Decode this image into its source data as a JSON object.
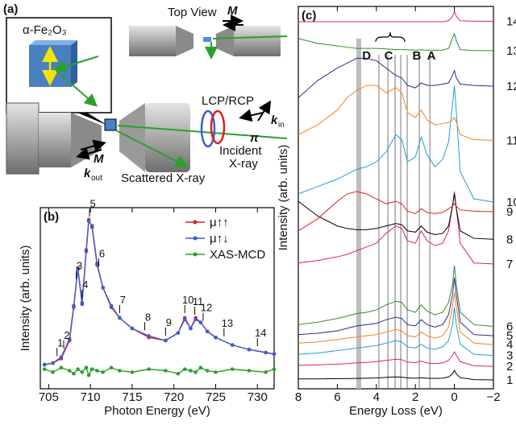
{
  "diagram": {
    "label": "(a)",
    "sample": "α-Fe₂O₃",
    "top_view": "Top View",
    "magnetization": "M",
    "polarization": "LCP/RCP",
    "k_symbol": "k",
    "k_in_sub": "in",
    "k_out_sub": "out",
    "pi": "π",
    "incident_1": "Incident",
    "incident_2": "X-ray",
    "scattered": "Scattered X-ray"
  },
  "chart_data": [
    {
      "type": "line",
      "title": "(b)",
      "x_label": "Photon Energy (eV)",
      "y_label": "Intensity (arb. units)",
      "x": [
        704.5,
        705.5,
        706.5,
        707.5,
        708,
        708.5,
        709,
        709.5,
        709.8,
        710.2,
        710.8,
        711.5,
        712.5,
        713.5,
        715,
        717,
        719,
        720.5,
        721.3,
        722,
        722.6,
        723.2,
        724,
        725,
        727,
        729,
        731,
        732
      ],
      "xlim": [
        704,
        732
      ],
      "xticks": [
        705,
        710,
        715,
        720,
        725,
        730
      ],
      "ylim": [
        -0.12,
        1.08
      ],
      "markers": true,
      "legend": "upper right",
      "series": [
        {
          "name": "μ↑↑",
          "color": "#e02020",
          "values": [
            0.04,
            0.05,
            0.08,
            0.2,
            0.42,
            0.68,
            0.45,
            0.8,
            1.0,
            0.95,
            0.7,
            0.55,
            0.42,
            0.35,
            0.28,
            0.22,
            0.2,
            0.25,
            0.35,
            0.28,
            0.35,
            0.32,
            0.26,
            0.22,
            0.17,
            0.14,
            0.12,
            0.11
          ]
        },
        {
          "name": "μ↑↓",
          "color": "#3a5fcd",
          "values": [
            0.04,
            0.05,
            0.09,
            0.21,
            0.43,
            0.67,
            0.44,
            0.79,
            0.99,
            0.96,
            0.71,
            0.55,
            0.43,
            0.35,
            0.28,
            0.23,
            0.2,
            0.25,
            0.34,
            0.28,
            0.34,
            0.32,
            0.26,
            0.22,
            0.17,
            0.14,
            0.12,
            0.11
          ]
        },
        {
          "name": "XAS-MCD",
          "color": "#2ca02c",
          "values": [
            0.01,
            -0.01,
            0.02,
            0,
            -0.02,
            0.01,
            -0.01,
            0.02,
            -0.03,
            0.01,
            0,
            -0.01,
            0.02,
            0,
            -0.01,
            0.01,
            0,
            -0.02,
            0.01,
            0,
            -0.01,
            0.02,
            0,
            -0.01,
            0.01,
            0,
            -0.01,
            0.01
          ]
        }
      ],
      "peak_labels": [
        {
          "text": "1",
          "x": 706
        },
        {
          "text": "2",
          "x": 706.8
        },
        {
          "text": "3",
          "x": 708.3
        },
        {
          "text": "4",
          "x": 709
        },
        {
          "text": "5",
          "x": 709.9
        },
        {
          "text": "6",
          "x": 711
        },
        {
          "text": "7",
          "x": 713.5
        },
        {
          "text": "8",
          "x": 716.5
        },
        {
          "text": "9",
          "x": 719
        },
        {
          "text": "10",
          "x": 721.3
        },
        {
          "text": "11",
          "x": 722.5
        },
        {
          "text": "12",
          "x": 723.5
        },
        {
          "text": "13",
          "x": 726
        },
        {
          "text": "14",
          "x": 730
        }
      ]
    },
    {
      "type": "line",
      "title": "(c)",
      "x_label": "Energy Loss (eV)",
      "y_label": "Intensity (arb. units)",
      "x": [
        8,
        7,
        6,
        5.5,
        5,
        4.5,
        4,
        3.5,
        3,
        2.7,
        2.4,
        2,
        1.7,
        1.4,
        1,
        0.6,
        0.3,
        0.1,
        0,
        -0.1,
        -0.3,
        -1,
        -2
      ],
      "xlim": [
        8,
        -2
      ],
      "xticks": [
        8,
        6,
        4,
        2,
        0,
        {
          "value": -2,
          "label": "−2"
        }
      ],
      "ylim": [
        0,
        15.5
      ],
      "series_labels": "right",
      "band": 4.9,
      "lines": [
        3.87,
        3.41,
        3.04,
        2.75,
        2.42,
        1.8,
        1.26
      ],
      "annotations": [
        {
          "text": "D",
          "x": 4.5
        },
        {
          "text": "C",
          "x": 3.37
        },
        {
          "text": "B",
          "x": 1.93
        },
        {
          "text": "A",
          "x": 1.18
        }
      ],
      "series": [
        {
          "name": "1",
          "color": "#000000",
          "values": [
            0.4,
            0.4,
            0.41,
            0.41,
            0.42,
            0.43,
            0.44,
            0.46,
            0.48,
            0.47,
            0.44,
            0.43,
            0.45,
            0.43,
            0.42,
            0.43,
            0.48,
            0.6,
            0.75,
            0.6,
            0.45,
            0.37,
            0.36
          ]
        },
        {
          "name": "2",
          "color": "#e0245e",
          "values": [
            0.95,
            0.97,
            1.0,
            1.02,
            1.05,
            1.07,
            1.1,
            1.15,
            1.2,
            1.18,
            1.08,
            1.06,
            1.12,
            1.05,
            1.02,
            1.05,
            1.15,
            1.35,
            1.5,
            1.35,
            1.1,
            0.93,
            0.91
          ]
        },
        {
          "name": "3",
          "color": "#1f9fd5",
          "values": [
            1.4,
            1.45,
            1.55,
            1.6,
            1.65,
            1.7,
            1.75,
            1.85,
            1.95,
            1.9,
            1.7,
            1.65,
            1.8,
            1.65,
            1.6,
            1.7,
            1.95,
            2.6,
            3.3,
            2.6,
            1.8,
            1.4,
            1.35
          ]
        },
        {
          "name": "4",
          "color": "#f5821f",
          "values": [
            1.85,
            1.9,
            2.0,
            2.05,
            2.1,
            2.15,
            2.2,
            2.3,
            2.4,
            2.35,
            2.15,
            2.1,
            2.3,
            2.15,
            2.05,
            2.15,
            2.5,
            3.3,
            3.9,
            3.3,
            2.3,
            1.85,
            1.79
          ]
        },
        {
          "name": "5",
          "color": "#2b2b8f",
          "values": [
            2.2,
            2.25,
            2.35,
            2.45,
            2.55,
            2.6,
            2.65,
            2.8,
            2.9,
            2.85,
            2.6,
            2.55,
            2.8,
            2.6,
            2.5,
            2.6,
            3.0,
            3.8,
            4.5,
            3.8,
            2.7,
            2.2,
            2.15
          ]
        },
        {
          "name": "6",
          "color": "#2e8b2e",
          "values": [
            2.6,
            2.7,
            2.85,
            2.95,
            3.05,
            3.1,
            3.2,
            3.4,
            3.55,
            3.5,
            3.2,
            3.1,
            3.4,
            3.15,
            3.0,
            3.1,
            3.5,
            4.2,
            5.0,
            4.2,
            3.1,
            2.6,
            2.53
          ]
        },
        {
          "name": "7",
          "color": "#d6246e",
          "values": [
            5.1,
            5.2,
            5.35,
            5.45,
            5.6,
            5.75,
            5.9,
            6.3,
            6.6,
            6.5,
            6.0,
            5.9,
            6.4,
            6.0,
            5.8,
            5.9,
            6.4,
            7.4,
            8.0,
            7.3,
            5.9,
            5.1,
            5.06
          ]
        },
        {
          "name": "8",
          "color": "#000000",
          "values": [
            7.6,
            7.0,
            6.6,
            6.5,
            6.45,
            6.45,
            6.5,
            6.6,
            6.7,
            6.65,
            6.4,
            6.35,
            6.6,
            6.35,
            6.25,
            6.3,
            6.6,
            7.4,
            7.9,
            7.3,
            6.4,
            6.1,
            6.06
          ]
        },
        {
          "name": "9",
          "color": "#e02020",
          "values": [
            6.4,
            6.9,
            7.6,
            7.9,
            8.0,
            7.9,
            7.7,
            7.5,
            7.6,
            7.5,
            7.2,
            7.1,
            7.3,
            7.15,
            7.1,
            7.15,
            7.3,
            7.4,
            7.5,
            7.4,
            7.25,
            7.2,
            7.18
          ]
        },
        {
          "name": "10",
          "color": "#1f9fd5",
          "values": [
            7.9,
            8.2,
            8.5,
            8.7,
            8.9,
            9.0,
            9.2,
            9.6,
            10.3,
            10.1,
            9.2,
            9.4,
            10.2,
            9.5,
            9.0,
            9.3,
            10.0,
            11.5,
            12.3,
            11.2,
            8.8,
            7.7,
            7.57
          ]
        },
        {
          "name": "11",
          "color": "#f5821f",
          "values": [
            10.3,
            10.7,
            11.3,
            11.8,
            12.1,
            12.3,
            12.3,
            12.0,
            12.2,
            12.0,
            11.2,
            11.0,
            11.3,
            10.9,
            10.7,
            10.75,
            10.8,
            10.9,
            11.0,
            10.8,
            10.3,
            10.1,
            10.07
          ]
        },
        {
          "name": "12",
          "color": "#2b2b8f",
          "values": [
            11.8,
            12.5,
            13.0,
            13.2,
            13.4,
            13.4,
            13.3,
            13.0,
            12.7,
            12.6,
            12.3,
            12.2,
            12.4,
            12.3,
            12.3,
            12.35,
            12.4,
            12.7,
            12.9,
            12.6,
            12.35,
            12.3,
            12.27
          ]
        },
        {
          "name": "13",
          "color": "#2e8b2e",
          "values": [
            14.2,
            14.0,
            13.9,
            13.85,
            13.8,
            13.8,
            13.8,
            13.78,
            13.75,
            13.75,
            13.74,
            13.73,
            13.74,
            13.73,
            13.72,
            13.73,
            13.8,
            14.2,
            14.4,
            14.1,
            13.75,
            13.71,
            13.71
          ]
        },
        {
          "name": "14",
          "color": "#d6246e",
          "values": [
            14.88,
            14.88,
            14.88,
            14.88,
            14.88,
            14.88,
            14.88,
            14.88,
            14.88,
            14.88,
            14.88,
            14.88,
            14.88,
            14.88,
            14.88,
            14.88,
            14.92,
            15.1,
            15.3,
            15.1,
            14.92,
            14.9,
            14.9
          ]
        }
      ]
    }
  ]
}
